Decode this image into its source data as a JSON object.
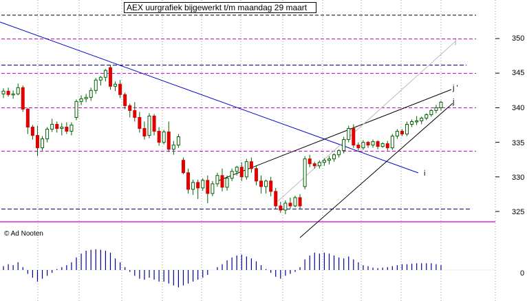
{
  "chart_data": {
    "type": "candlestick",
    "title": "AEX uurgrafiek bijgewerkt t/m maandag 29 maart",
    "credit": "© Ad Nooten",
    "y_ticks": [
      "350",
      "345",
      "340",
      "335",
      "330",
      "325"
    ],
    "y_tick_values": [
      350,
      345,
      340,
      335,
      330,
      325
    ],
    "ylim": [
      322,
      353
    ],
    "osc_tick": "0",
    "osc_tick_value": 0,
    "grid": true,
    "colors": {
      "up": "#ffffff",
      "down": "#e00000",
      "wick": "#006000",
      "blue_line": "#0000cc",
      "magenta_dash": "#cc00cc",
      "navy_dash": "#000088",
      "support": "#cc00cc",
      "oscillator": "#000099",
      "grid": "#999999"
    },
    "candles": [
      [
        342.0,
        342.8,
        341.4,
        342.4
      ],
      [
        342.4,
        342.9,
        341.6,
        341.9
      ],
      [
        341.9,
        342.5,
        341.3,
        342.0
      ],
      [
        342.0,
        343.5,
        341.8,
        342.9
      ],
      [
        342.9,
        343.2,
        339.4,
        339.8
      ],
      [
        339.8,
        340.0,
        336.2,
        337.2
      ],
      [
        337.2,
        337.5,
        335.4,
        336.0
      ],
      [
        336.0,
        337.4,
        333.0,
        334.2
      ],
      [
        334.2,
        335.9,
        333.8,
        335.5
      ],
      [
        335.5,
        337.2,
        335.0,
        336.9
      ],
      [
        336.9,
        338.4,
        336.5,
        337.6
      ],
      [
        337.6,
        338.0,
        336.4,
        337.0
      ],
      [
        337.0,
        337.8,
        336.0,
        337.2
      ],
      [
        337.2,
        337.9,
        336.2,
        336.6
      ],
      [
        336.6,
        337.9,
        336.0,
        337.5
      ],
      [
        338.6,
        341.2,
        338.2,
        340.9
      ],
      [
        340.9,
        341.8,
        340.4,
        341.3
      ],
      [
        341.3,
        342.0,
        340.8,
        341.5
      ],
      [
        341.5,
        342.9,
        341.0,
        342.5
      ],
      [
        342.5,
        344.3,
        342.0,
        344.0
      ],
      [
        344.0,
        344.6,
        343.2,
        344.4
      ],
      [
        344.4,
        345.6,
        343.8,
        345.4
      ],
      [
        345.8,
        346.2,
        342.6,
        343.1
      ],
      [
        343.1,
        343.8,
        342.4,
        343.4
      ],
      [
        343.4,
        344.0,
        341.4,
        341.9
      ],
      [
        341.9,
        342.2,
        339.8,
        340.3
      ],
      [
        340.3,
        340.6,
        338.6,
        339.6
      ],
      [
        339.6,
        340.8,
        338.0,
        338.6
      ],
      [
        338.6,
        339.4,
        336.4,
        337.0
      ],
      [
        337.0,
        338.0,
        335.4,
        335.9
      ],
      [
        336.0,
        339.2,
        335.6,
        338.8
      ],
      [
        338.8,
        339.1,
        336.0,
        336.6
      ],
      [
        336.6,
        337.2,
        334.5,
        335.0
      ],
      [
        335.0,
        336.8,
        334.7,
        336.5
      ],
      [
        336.5,
        338.0,
        333.6,
        334.0
      ],
      [
        334.0,
        335.2,
        333.2,
        334.6
      ],
      [
        334.6,
        336.2,
        334.2,
        335.8
      ],
      [
        332.4,
        332.8,
        330.4,
        330.6
      ],
      [
        330.6,
        331.2,
        327.6,
        328.2
      ],
      [
        328.2,
        329.6,
        327.4,
        329.2
      ],
      [
        329.2,
        329.6,
        326.8,
        328.4
      ],
      [
        328.4,
        329.8,
        328.0,
        329.5
      ],
      [
        329.5,
        330.2,
        326.2,
        327.6
      ],
      [
        327.6,
        329.4,
        327.2,
        329.0
      ],
      [
        329.0,
        330.6,
        328.6,
        330.2
      ],
      [
        330.2,
        331.2,
        327.9,
        328.5
      ],
      [
        328.5,
        330.2,
        328.0,
        329.8
      ],
      [
        329.8,
        331.2,
        329.4,
        330.8
      ],
      [
        330.8,
        331.6,
        330.2,
        331.4
      ],
      [
        331.4,
        332.1,
        329.4,
        330.0
      ],
      [
        330.0,
        332.6,
        329.6,
        332.2
      ],
      [
        332.2,
        332.8,
        330.6,
        331.2
      ],
      [
        331.2,
        331.6,
        328.8,
        329.4
      ],
      [
        329.4,
        330.2,
        327.6,
        328.6
      ],
      [
        328.6,
        329.6,
        327.6,
        329.4
      ],
      [
        329.4,
        330.0,
        327.2,
        327.9
      ],
      [
        327.9,
        328.4,
        325.4,
        325.8
      ],
      [
        325.8,
        326.4,
        324.8,
        325.2
      ],
      [
        325.2,
        326.6,
        324.6,
        326.2
      ],
      [
        326.2,
        327.0,
        325.4,
        325.8
      ],
      [
        325.8,
        327.3,
        325.6,
        327.0
      ],
      [
        327.0,
        327.5,
        325.4,
        325.8
      ],
      [
        328.6,
        333.0,
        328.2,
        332.6
      ],
      [
        332.6,
        333.2,
        331.4,
        331.9
      ],
      [
        331.9,
        332.2,
        331.2,
        331.6
      ],
      [
        331.6,
        332.4,
        331.2,
        332.1
      ],
      [
        332.1,
        332.7,
        331.6,
        332.4
      ],
      [
        332.4,
        333.0,
        331.8,
        332.6
      ],
      [
        332.6,
        333.4,
        332.2,
        333.2
      ],
      [
        333.2,
        334.0,
        332.8,
        333.8
      ],
      [
        333.8,
        335.8,
        333.4,
        335.4
      ],
      [
        335.4,
        337.4,
        335.0,
        337.0
      ],
      [
        337.0,
        337.6,
        334.2,
        334.6
      ],
      [
        334.6,
        335.0,
        333.8,
        334.2
      ],
      [
        334.2,
        335.3,
        333.9,
        335.0
      ],
      [
        335.0,
        335.2,
        334.2,
        334.6
      ],
      [
        334.6,
        335.4,
        334.2,
        335.1
      ],
      [
        335.1,
        335.3,
        334.0,
        334.4
      ],
      [
        334.4,
        335.0,
        334.2,
        334.8
      ],
      [
        334.8,
        335.2,
        333.8,
        334.2
      ],
      [
        334.2,
        336.2,
        333.9,
        335.9
      ],
      [
        335.9,
        336.9,
        335.5,
        336.6
      ],
      [
        336.6,
        336.9,
        335.9,
        336.2
      ],
      [
        336.2,
        338.0,
        335.9,
        337.6
      ],
      [
        337.6,
        338.3,
        337.2,
        338.0
      ],
      [
        338.0,
        338.8,
        337.5,
        338.1
      ],
      [
        338.1,
        338.7,
        337.6,
        338.5
      ],
      [
        338.5,
        339.2,
        338.2,
        339.0
      ],
      [
        339.0,
        339.8,
        338.7,
        339.6
      ],
      [
        339.6,
        340.4,
        339.2,
        340.0
      ],
      [
        340.0,
        341.0,
        339.6,
        340.8
      ]
    ],
    "oscillator": [
      0.8,
      1.2,
      1.0,
      1.6,
      0.6,
      -0.8,
      -1.6,
      -2.4,
      -1.8,
      -1.2,
      -0.6,
      0.2,
      0.6,
      1.0,
      1.6,
      2.6,
      3.4,
      4.0,
      4.2,
      4.3,
      4.2,
      4.0,
      3.6,
      2.4,
      1.6,
      0.6,
      -0.4,
      -1.2,
      -1.8,
      -2.0,
      -1.6,
      -2.0,
      -2.4,
      -2.4,
      -2.8,
      -3.2,
      -3.6,
      -3.2,
      -2.8,
      -2.4,
      -2.0,
      -1.6,
      -1.0,
      0,
      0.6,
      1.2,
      2.0,
      2.6,
      3.0,
      3.2,
      2.8,
      2.4,
      1.8,
      1.0,
      0.2,
      -0.6,
      -1.4,
      -1.8,
      -1.2,
      -0.8,
      -0.4,
      0.6,
      2.2,
      3.0,
      3.6,
      3.4,
      3.6,
      3.4,
      3.0,
      2.6,
      2.4,
      2.8,
      2.2,
      1.6,
      1.0,
      0.8,
      0.5,
      0.4,
      0.5,
      0.6,
      0.8,
      1.0,
      1.2,
      1.2,
      1.3,
      1.4,
      1.4,
      1.4,
      1.4,
      1.2,
      1.0
    ],
    "annotations": [
      "j '",
      "j",
      "i",
      "j"
    ]
  }
}
